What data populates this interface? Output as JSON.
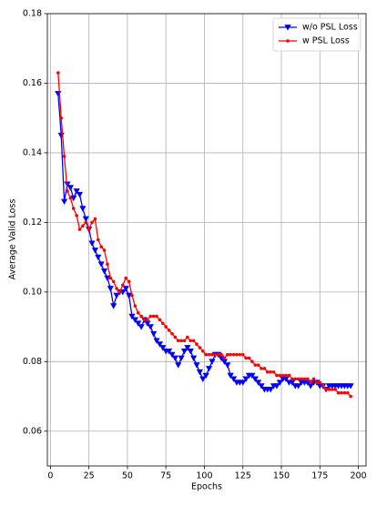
{
  "chart_data": {
    "type": "line",
    "xlabel": "Epochs",
    "ylabel": "Average Valid Loss",
    "x": [
      5,
      7,
      9,
      11,
      13,
      15,
      17,
      19,
      21,
      23,
      25,
      27,
      29,
      31,
      33,
      35,
      37,
      39,
      41,
      43,
      45,
      47,
      49,
      51,
      53,
      55,
      57,
      59,
      61,
      63,
      65,
      67,
      69,
      71,
      73,
      75,
      77,
      79,
      81,
      83,
      85,
      87,
      89,
      91,
      93,
      95,
      97,
      99,
      101,
      103,
      105,
      107,
      109,
      111,
      113,
      115,
      117,
      119,
      121,
      123,
      125,
      127,
      129,
      131,
      133,
      135,
      137,
      139,
      141,
      143,
      145,
      147,
      149,
      151,
      153,
      155,
      157,
      159,
      161,
      163,
      165,
      167,
      169,
      171,
      173,
      175,
      177,
      179,
      181,
      183,
      185,
      187,
      189,
      191,
      193,
      195
    ],
    "series": [
      {
        "name": "w/o PSL Loss",
        "color": "#0000ff",
        "marker": "triangle-down",
        "values": [
          0.157,
          0.145,
          0.126,
          0.131,
          0.13,
          0.127,
          0.129,
          0.128,
          0.124,
          0.121,
          0.118,
          0.114,
          0.112,
          0.11,
          0.108,
          0.106,
          0.104,
          0.101,
          0.096,
          0.099,
          0.1,
          0.1,
          0.101,
          0.099,
          0.093,
          0.092,
          0.091,
          0.09,
          0.092,
          0.091,
          0.09,
          0.088,
          0.086,
          0.085,
          0.084,
          0.083,
          0.083,
          0.082,
          0.081,
          0.079,
          0.081,
          0.083,
          0.084,
          0.083,
          0.081,
          0.079,
          0.077,
          0.075,
          0.076,
          0.078,
          0.08,
          0.082,
          0.082,
          0.081,
          0.08,
          0.079,
          0.076,
          0.075,
          0.074,
          0.074,
          0.074,
          0.075,
          0.076,
          0.076,
          0.075,
          0.074,
          0.073,
          0.072,
          0.072,
          0.072,
          0.073,
          0.073,
          0.074,
          0.075,
          0.075,
          0.074,
          0.074,
          0.073,
          0.073,
          0.074,
          0.074,
          0.074,
          0.073,
          0.074,
          0.074,
          0.073,
          0.073,
          0.072,
          0.073,
          0.073,
          0.073,
          0.073,
          0.073,
          0.073,
          0.073,
          0.073
        ]
      },
      {
        "name": "w PSL Loss",
        "color": "#ff0000",
        "marker": "circle",
        "values": [
          0.163,
          0.15,
          0.139,
          0.129,
          0.127,
          0.124,
          0.122,
          0.118,
          0.119,
          0.12,
          0.118,
          0.12,
          0.121,
          0.115,
          0.113,
          0.112,
          0.108,
          0.104,
          0.103,
          0.101,
          0.1,
          0.102,
          0.104,
          0.103,
          0.099,
          0.096,
          0.094,
          0.093,
          0.092,
          0.092,
          0.093,
          0.093,
          0.093,
          0.092,
          0.091,
          0.09,
          0.089,
          0.088,
          0.087,
          0.086,
          0.086,
          0.086,
          0.087,
          0.086,
          0.086,
          0.085,
          0.084,
          0.083,
          0.082,
          0.082,
          0.082,
          0.082,
          0.082,
          0.082,
          0.081,
          0.082,
          0.082,
          0.082,
          0.082,
          0.082,
          0.082,
          0.081,
          0.081,
          0.08,
          0.079,
          0.079,
          0.078,
          0.078,
          0.077,
          0.077,
          0.077,
          0.076,
          0.076,
          0.076,
          0.076,
          0.076,
          0.075,
          0.075,
          0.075,
          0.075,
          0.075,
          0.075,
          0.074,
          0.075,
          0.074,
          0.074,
          0.073,
          0.072,
          0.072,
          0.072,
          0.072,
          0.071,
          0.071,
          0.071,
          0.071,
          0.07
        ]
      }
    ],
    "xlim": [
      -2,
      205
    ],
    "xticks": [
      0,
      25,
      50,
      75,
      100,
      125,
      150,
      175,
      200
    ],
    "ylim": [
      0.05,
      0.18
    ],
    "yticks": [
      0.06,
      0.08,
      {
        "value": 0.1,
        "label": "0.10"
      },
      0.12,
      0.14,
      0.16,
      0.18
    ],
    "grid": true,
    "legend": "upper right"
  }
}
